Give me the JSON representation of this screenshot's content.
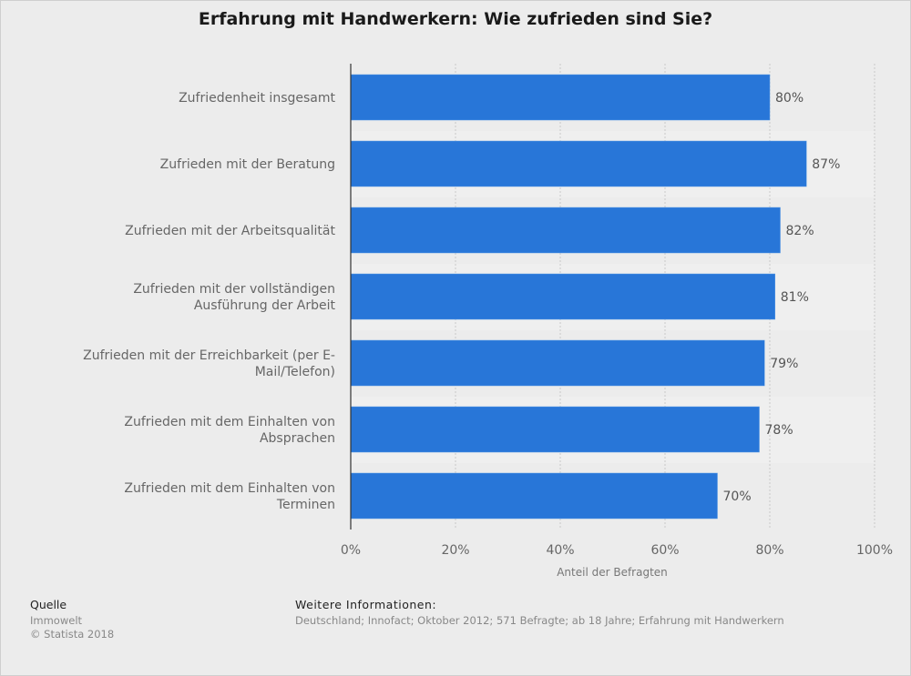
{
  "chart_data": {
    "type": "bar",
    "orientation": "horizontal",
    "title": "Erfahrung mit Handwerkern: Wie zufrieden sind Sie?",
    "categories": [
      [
        "Zufriedenheit insgesamt"
      ],
      [
        "Zufrieden mit der Beratung"
      ],
      [
        "Zufrieden mit der Arbeitsqualität"
      ],
      [
        "Zufrieden mit der vollständigen",
        "Ausführung der Arbeit"
      ],
      [
        "Zufrieden mit der Erreichbarkeit (per E-",
        "Mail/Telefon)"
      ],
      [
        "Zufrieden mit dem Einhalten von",
        "Absprachen"
      ],
      [
        "Zufrieden mit dem Einhalten von",
        "Terminen"
      ]
    ],
    "values": [
      80,
      87,
      82,
      81,
      79,
      78,
      70
    ],
    "value_labels": [
      "80%",
      "87%",
      "82%",
      "81%",
      "79%",
      "78%",
      "70%"
    ],
    "xlabel": "Anteil der Befragten",
    "ylabel": "",
    "xlim": [
      0,
      100
    ],
    "xticks": [
      0,
      20,
      40,
      60,
      80,
      100
    ],
    "xtick_labels": [
      "0%",
      "20%",
      "40%",
      "60%",
      "80%",
      "100%"
    ],
    "grid": true,
    "bar_color": "#2876d8"
  },
  "footer": {
    "source_heading": "Quelle",
    "source_name": "Immowelt",
    "copyright": "© Statista 2018",
    "info_heading": "Weitere Informationen:",
    "info_text": "Deutschland; Innofact; Oktober 2012; 571 Befragte; ab 18 Jahre; Erfahrung mit Handwerkern"
  }
}
